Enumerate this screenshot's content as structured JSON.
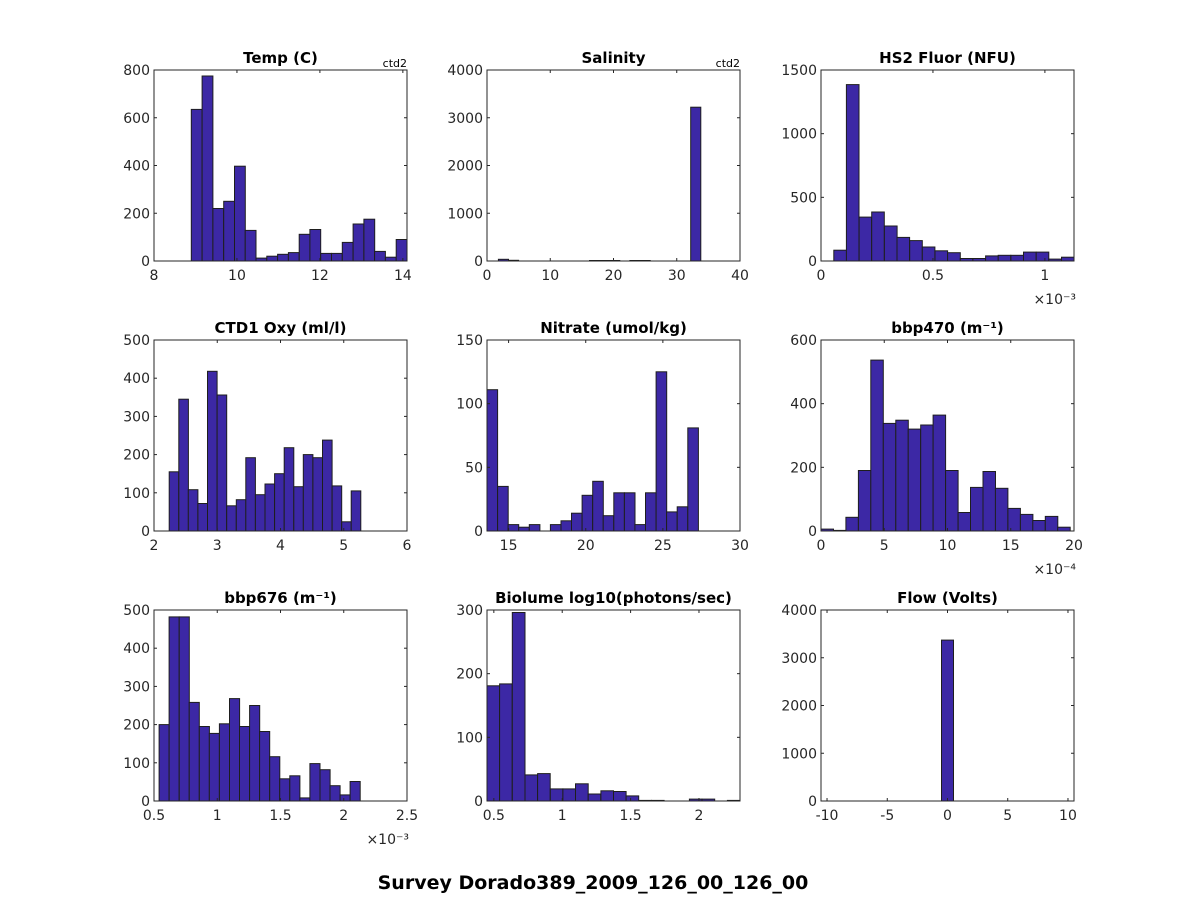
{
  "figure": {
    "suptitle": "Survey Dorado389_2009_126_00_126_00"
  },
  "chart_data": [
    {
      "type": "bar",
      "title": "Temp (C)",
      "corner_note": "ctd2",
      "xlim": [
        8,
        14.1
      ],
      "ylim": [
        0,
        800
      ],
      "xticks": [
        8,
        10,
        12,
        14
      ],
      "xtick_labels": [
        "8",
        "10",
        "12",
        "14"
      ],
      "yticks": [
        0,
        200,
        400,
        600,
        800
      ],
      "ytick_labels": [
        "0",
        "200",
        "400",
        "600",
        "800"
      ],
      "bin_start": 8.9,
      "bin_width": 0.26,
      "values": [
        635,
        775,
        220,
        250,
        397,
        128,
        12,
        20,
        28,
        35,
        112,
        132,
        32,
        32,
        78,
        155,
        175,
        40,
        16,
        90
      ]
    },
    {
      "type": "bar",
      "title": "Salinity",
      "corner_note": "ctd2",
      "xlim": [
        0,
        40
      ],
      "ylim": [
        0,
        4000
      ],
      "xticks": [
        0,
        10,
        20,
        30,
        40
      ],
      "xtick_labels": [
        "0",
        "10",
        "20",
        "30",
        "40"
      ],
      "yticks": [
        0,
        1000,
        2000,
        3000,
        4000
      ],
      "ytick_labels": [
        "0",
        "1000",
        "2000",
        "3000",
        "4000"
      ],
      "bin_start": 1.8,
      "bin_width": 1.6,
      "values": [
        35,
        15,
        0,
        0,
        0,
        0,
        0,
        0,
        0,
        10,
        10,
        10,
        0,
        10,
        10,
        0,
        0,
        0,
        0,
        3220
      ]
    },
    {
      "type": "bar",
      "title": "HS2 Fluor (NFU)",
      "corner_note": "",
      "exponent_label": "×10⁻³",
      "xlim": [
        0,
        1.13
      ],
      "ylim": [
        0,
        1500
      ],
      "xticks": [
        0,
        0.5,
        1
      ],
      "xtick_labels": [
        "0",
        "0.5",
        "1"
      ],
      "yticks": [
        0,
        500,
        1000,
        1500
      ],
      "ytick_labels": [
        "0",
        "500",
        "1000",
        "1500"
      ],
      "bin_start": 0.057,
      "bin_width": 0.0565,
      "values": [
        85,
        1385,
        345,
        385,
        275,
        185,
        160,
        110,
        80,
        65,
        20,
        20,
        40,
        45,
        45,
        70,
        70,
        15,
        30
      ]
    },
    {
      "type": "bar",
      "title": "CTD1 Oxy (ml/l)",
      "corner_note": "",
      "xlim": [
        2,
        6
      ],
      "ylim": [
        0,
        500
      ],
      "xticks": [
        2,
        3,
        4,
        5,
        6
      ],
      "xtick_labels": [
        "2",
        "3",
        "4",
        "5",
        "6"
      ],
      "yticks": [
        0,
        100,
        200,
        300,
        400,
        500
      ],
      "ytick_labels": [
        "0",
        "100",
        "200",
        "300",
        "400",
        "500"
      ],
      "bin_start": 2.24,
      "bin_width": 0.1515,
      "values": [
        155,
        345,
        108,
        72,
        418,
        356,
        66,
        82,
        192,
        95,
        123,
        150,
        218,
        116,
        200,
        192,
        238,
        118,
        24,
        105
      ]
    },
    {
      "type": "bar",
      "title": "Nitrate (umol/kg)",
      "corner_note": "",
      "xlim": [
        13.6,
        30
      ],
      "ylim": [
        0,
        150
      ],
      "xticks": [
        15,
        20,
        25,
        30
      ],
      "xtick_labels": [
        "15",
        "20",
        "25",
        "30"
      ],
      "yticks": [
        0,
        50,
        100,
        150
      ],
      "ytick_labels": [
        "0",
        "50",
        "100",
        "150"
      ],
      "bin_start": 13.6,
      "bin_width": 0.685,
      "values": [
        111,
        35,
        5,
        3,
        5,
        0,
        5,
        8,
        14,
        28,
        39,
        12,
        30,
        30,
        5,
        30,
        125,
        15,
        19,
        81
      ]
    },
    {
      "type": "bar",
      "title": "bbp470 (m⁻¹)",
      "corner_note": "",
      "exponent_label": "×10⁻⁴",
      "xlim": [
        0,
        20
      ],
      "ylim": [
        0,
        600
      ],
      "xticks": [
        0,
        5,
        10,
        15,
        20
      ],
      "xtick_labels": [
        "0",
        "5",
        "10",
        "15",
        "20"
      ],
      "yticks": [
        0,
        200,
        400,
        600
      ],
      "ytick_labels": [
        "0",
        "200",
        "400",
        "600"
      ],
      "bin_start": 0.0,
      "bin_width": 0.985,
      "values": [
        6,
        2,
        43,
        190,
        537,
        338,
        348,
        320,
        333,
        364,
        190,
        58,
        137,
        187,
        134,
        71,
        52,
        33,
        46,
        12
      ]
    },
    {
      "type": "bar",
      "title": "bbp676 (m⁻¹)",
      "corner_note": "",
      "exponent_label": "×10⁻³",
      "xlim": [
        0.5,
        2.5
      ],
      "ylim": [
        0,
        500
      ],
      "xticks": [
        0.5,
        1,
        1.5,
        2,
        2.5
      ],
      "xtick_labels": [
        "0.5",
        "1",
        "1.5",
        "2",
        "2.5"
      ],
      "yticks": [
        0,
        100,
        200,
        300,
        400,
        500
      ],
      "ytick_labels": [
        "0",
        "100",
        "200",
        "300",
        "400",
        "500"
      ],
      "bin_start": 0.54,
      "bin_width": 0.0795,
      "values": [
        200,
        482,
        482,
        258,
        195,
        177,
        202,
        268,
        195,
        250,
        182,
        116,
        58,
        66,
        8,
        98,
        82,
        40,
        16,
        51
      ]
    },
    {
      "type": "bar",
      "title": "Biolume log10(photons/sec)",
      "corner_note": "",
      "xlim": [
        0.45,
        2.3
      ],
      "ylim": [
        0,
        300
      ],
      "xticks": [
        0.5,
        1,
        1.5,
        2
      ],
      "xtick_labels": [
        "0.5",
        "1",
        "1.5",
        "2"
      ],
      "yticks": [
        0,
        100,
        200,
        300
      ],
      "ytick_labels": [
        "0",
        "100",
        "200",
        "300"
      ],
      "bin_start": 0.45,
      "bin_width": 0.0925,
      "values": [
        181,
        184,
        296,
        41,
        43,
        19,
        19,
        27,
        11,
        16,
        15,
        8,
        1,
        1,
        0,
        0,
        3,
        3,
        0,
        1
      ]
    },
    {
      "type": "bar",
      "title": "Flow (Volts)",
      "corner_note": "",
      "xlim": [
        -10.5,
        10.5
      ],
      "ylim": [
        0,
        4000
      ],
      "xticks": [
        -10,
        -5,
        0,
        5,
        10
      ],
      "xtick_labels": [
        "-10",
        "-5",
        "0",
        "5",
        "10"
      ],
      "yticks": [
        0,
        1000,
        2000,
        3000,
        4000
      ],
      "ytick_labels": [
        "0",
        "1000",
        "2000",
        "3000",
        "4000"
      ],
      "bin_start": -0.5,
      "bin_width": 1.0,
      "values": [
        3370
      ]
    }
  ]
}
